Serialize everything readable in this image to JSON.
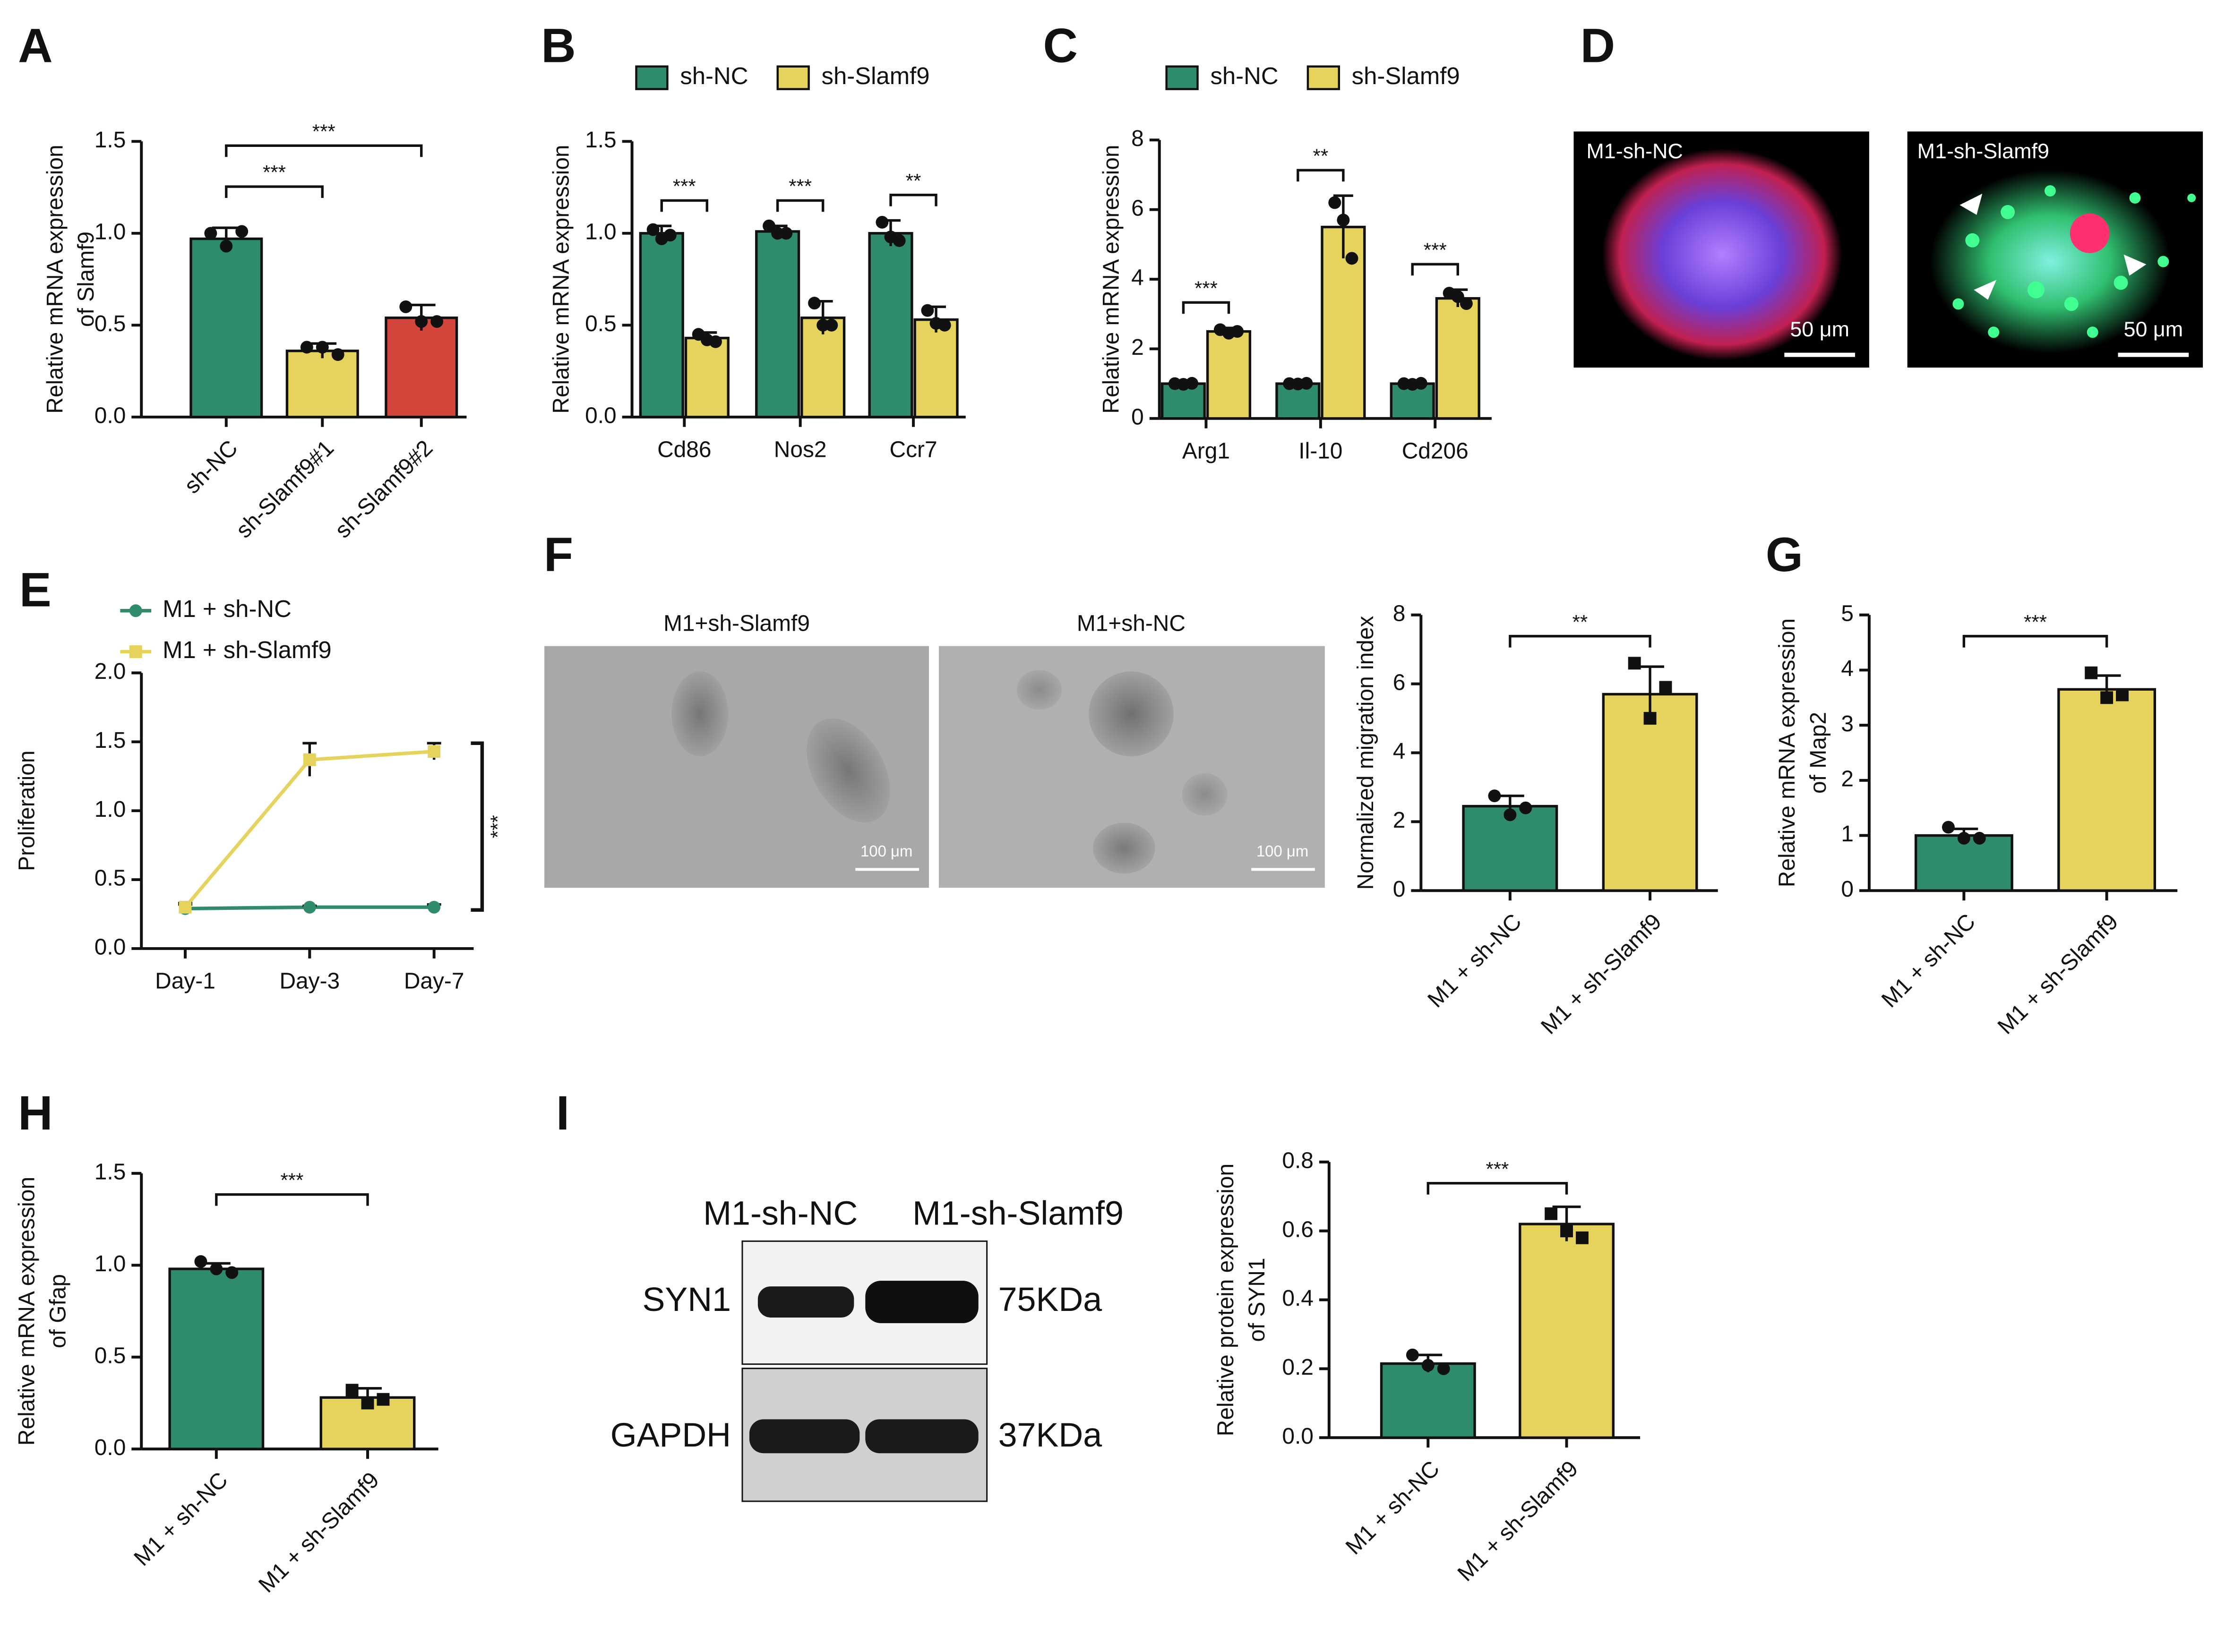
{
  "chart_data": [
    {
      "type": "bar",
      "panel": "A",
      "ylabel": [
        "Relative mRNA expression",
        "of Slamf9"
      ],
      "categories": [
        "sh-NC",
        "sh-Slamf9#1",
        "sh-Slamf9#2"
      ],
      "values": [
        0.97,
        0.36,
        0.54
      ],
      "errors": [
        0.06,
        0.04,
        0.07
      ],
      "points": [
        [
          1.0,
          0.93,
          1.01
        ],
        [
          0.38,
          0.38,
          0.34
        ],
        [
          0.6,
          0.52,
          0.52
        ]
      ],
      "colors": [
        "#2e8b6b",
        "#e5d35e",
        "#d4463c"
      ],
      "ylim": [
        0,
        1.5
      ],
      "yticks": [
        {
          "value": 0,
          "label": "0.0"
        },
        0.5,
        {
          "value": 1,
          "label": "1.0"
        },
        1.5
      ],
      "annotations": [
        {
          "text": "***",
          "pair": [
            0,
            1
          ]
        },
        {
          "text": "***",
          "pair": [
            0,
            2
          ]
        }
      ]
    },
    {
      "type": "grouped-bar",
      "panel": "B",
      "ylabel": [
        "Relative mRNA expression"
      ],
      "categories": [
        "Cd86",
        "Nos2",
        "Ccr7"
      ],
      "series": [
        {
          "name": "sh-NC",
          "color": "#2e8b6b",
          "values": [
            1.0,
            1.01,
            1.0
          ],
          "errors": [
            0.04,
            0.03,
            0.07
          ],
          "points": [
            [
              1.02,
              0.97,
              0.99
            ],
            [
              1.04,
              1.0,
              1.0
            ],
            [
              1.06,
              0.98,
              0.96
            ]
          ]
        },
        {
          "name": "sh-Slamf9",
          "color": "#e5d35e",
          "values": [
            0.43,
            0.54,
            0.53
          ],
          "errors": [
            0.03,
            0.09,
            0.07
          ],
          "points": [
            [
              0.45,
              0.42,
              0.41
            ],
            [
              0.62,
              0.5,
              0.5
            ],
            [
              0.58,
              0.51,
              0.5
            ]
          ]
        }
      ],
      "ylim": [
        0,
        1.5
      ],
      "yticks": [
        {
          "value": 0,
          "label": "0.0"
        },
        0.5,
        {
          "value": 1,
          "label": "1.0"
        },
        1.5
      ],
      "annotations": [
        "***",
        "***",
        "**"
      ]
    },
    {
      "type": "grouped-bar",
      "panel": "C",
      "ylabel": [
        "Relative mRNA expression"
      ],
      "categories": [
        "Arg1",
        "Il-10",
        "Cd206"
      ],
      "series": [
        {
          "name": "sh-NC",
          "color": "#2e8b6b",
          "values": [
            1.0,
            1.0,
            1.0
          ],
          "errors": [
            0.04,
            0.03,
            0.03
          ],
          "points": [
            [
              1.0,
              0.98,
              1.01
            ],
            [
              1.0,
              0.99,
              1.01
            ],
            [
              1.0,
              0.98,
              1.01
            ]
          ]
        },
        {
          "name": "sh-Slamf9",
          "color": "#e5d35e",
          "values": [
            2.5,
            5.5,
            3.45
          ],
          "errors": [
            0.1,
            0.9,
            0.25
          ],
          "points": [
            [
              2.55,
              2.45,
              2.5
            ],
            [
              6.2,
              5.7,
              4.6
            ],
            [
              3.6,
              3.5,
              3.3
            ]
          ]
        }
      ],
      "ylim": [
        0,
        8
      ],
      "yticks": [
        0,
        2,
        4,
        6,
        8
      ],
      "annotations": [
        "***",
        "**",
        "***"
      ]
    },
    {
      "type": "line",
      "panel": "E",
      "ylabel": [
        "Proliferation"
      ],
      "categories": [
        "Day-1",
        "Day-3",
        "Day-7"
      ],
      "series": [
        {
          "name": "M1 + sh-NC",
          "color": "#2e8b6b",
          "values": [
            0.29,
            0.3,
            0.3
          ],
          "errors": [
            0.03,
            0.01,
            0.02
          ]
        },
        {
          "name": "M1 + sh-Slamf9",
          "color": "#e5d35e",
          "values": [
            0.3,
            1.37,
            1.43
          ],
          "errors": [
            0.03,
            0.12,
            0.06
          ]
        }
      ],
      "ylim": [
        0,
        2
      ],
      "yticks": [
        {
          "value": 0,
          "label": "0.0"
        },
        0.5,
        {
          "value": 1,
          "label": "1.0"
        },
        1.5,
        {
          "value": 2,
          "label": "2.0"
        }
      ],
      "annotations": [
        {
          "text": "***"
        }
      ]
    },
    {
      "type": "bar",
      "panel": "F",
      "ylabel": [
        "Normalized migration index"
      ],
      "categories": [
        "M1 + sh-NC",
        "M1 + sh-Slamf9"
      ],
      "values": [
        2.45,
        5.7
      ],
      "errors": [
        0.3,
        0.8
      ],
      "points": [
        [
          2.75,
          2.2,
          2.4
        ],
        [
          6.6,
          5.0,
          5.9
        ]
      ],
      "colors": [
        "#2e8b6b",
        "#e5d35e"
      ],
      "ylim": [
        0,
        8
      ],
      "yticks": [
        0,
        2,
        4,
        6,
        8
      ],
      "annotations": [
        {
          "text": "**",
          "pair": [
            0,
            1
          ]
        }
      ]
    },
    {
      "type": "bar",
      "panel": "G",
      "ylabel": [
        "Relative mRNA expression",
        "of Map2"
      ],
      "categories": [
        "M1 + sh-NC",
        "M1 + sh-Slamf9"
      ],
      "values": [
        1.0,
        3.65
      ],
      "errors": [
        0.12,
        0.25
      ],
      "points": [
        [
          1.15,
          0.95,
          0.95
        ],
        [
          3.95,
          3.5,
          3.55
        ]
      ],
      "colors": [
        "#2e8b6b",
        "#e5d35e"
      ],
      "ylim": [
        0,
        5
      ],
      "yticks": [
        0,
        1,
        2,
        3,
        4,
        5
      ],
      "annotations": [
        {
          "text": "***",
          "pair": [
            0,
            1
          ]
        }
      ]
    },
    {
      "type": "bar",
      "panel": "H",
      "ylabel": [
        "Relative mRNA expression",
        "of Gfap"
      ],
      "categories": [
        "M1 + sh-NC",
        "M1 + sh-Slamf9"
      ],
      "values": [
        0.98,
        0.28
      ],
      "errors": [
        0.03,
        0.05
      ],
      "points": [
        [
          1.02,
          0.98,
          0.96
        ],
        [
          0.32,
          0.25,
          0.27
        ]
      ],
      "colors": [
        "#2e8b6b",
        "#e5d35e"
      ],
      "ylim": [
        0,
        1.5
      ],
      "yticks": [
        {
          "value": 0,
          "label": "0.0"
        },
        0.5,
        {
          "value": 1,
          "label": "1.0"
        },
        1.5
      ],
      "annotations": [
        {
          "text": "***",
          "pair": [
            0,
            1
          ]
        }
      ]
    },
    {
      "type": "bar",
      "panel": "I",
      "ylabel": [
        "Relative protein expression",
        "of SYN1"
      ],
      "categories": [
        "M1 + sh-NC",
        "M1 + sh-Slamf9"
      ],
      "values": [
        0.215,
        0.62
      ],
      "errors": [
        0.025,
        0.05
      ],
      "points": [
        [
          0.24,
          0.21,
          0.2
        ],
        [
          0.65,
          0.6,
          0.58
        ]
      ],
      "colors": [
        "#2e8b6b",
        "#e5d35e"
      ],
      "ylim": [
        0,
        0.8
      ],
      "yticks": [
        {
          "value": 0,
          "label": "0.0"
        },
        0.2,
        0.4,
        0.6,
        0.8
      ],
      "annotations": [
        {
          "text": "***",
          "pair": [
            0,
            1
          ]
        }
      ]
    }
  ],
  "figure": {
    "panel_d": {
      "label": "D",
      "images": [
        "M1-sh-NC",
        "M1-sh-Slamf9"
      ],
      "scale_bar": "50 μm"
    },
    "panel_f_images": {
      "images": [
        "M1+sh-Slamf9",
        "M1+sh-NC"
      ],
      "scale_bar": "100 μm"
    },
    "blot": {
      "lanes": [
        "M1-sh-NC",
        "M1-sh-Slamf9"
      ],
      "rows": [
        {
          "protein": "SYN1",
          "size": "75KDa"
        },
        {
          "protein": "GAPDH",
          "size": "37KDa"
        }
      ]
    }
  }
}
